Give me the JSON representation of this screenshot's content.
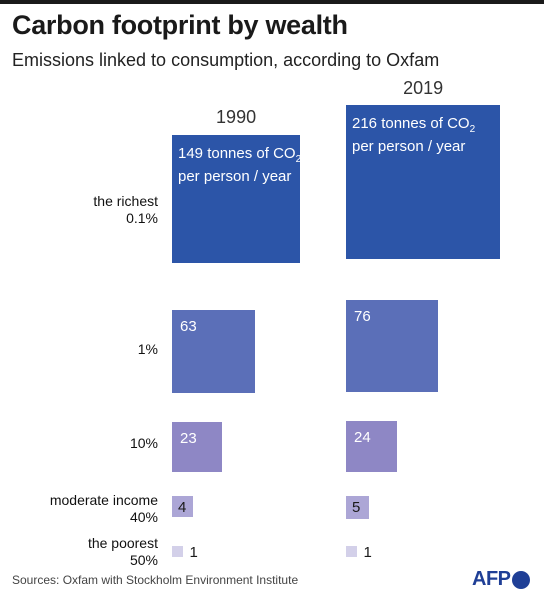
{
  "title": "Carbon footprint by wealth",
  "subtitle": "Emissions linked to consumption, according to Oxfam",
  "source": "Sources: Oxfam with Stockholm Environment Institute",
  "logo": "AFP",
  "colors": {
    "richest": "#2c55a8",
    "top1": "#5b6fb8",
    "top10": "#8e87c5",
    "middle": "#aca6d6",
    "poorest": "#d3d0e9"
  },
  "value_unit_line1": "tonnes of CO",
  "value_unit_sub": "2",
  "value_unit_line2": "per person / year",
  "chart_data": {
    "type": "bar",
    "title": "Carbon footprint by wealth",
    "subtitle": "Emissions linked to consumption, according to Oxfam",
    "unit": "tonnes of CO2 per person / year",
    "categories": [
      {
        "line1": "the richest",
        "line2": "0.1%"
      },
      {
        "line1": "",
        "line2": "1%"
      },
      {
        "line1": "",
        "line2": "10%"
      },
      {
        "line1": "moderate income",
        "line2": "40%"
      },
      {
        "line1": "the poorest",
        "line2": "50%"
      }
    ],
    "series": [
      {
        "name": "1990",
        "values": [
          149,
          63,
          23,
          4,
          1
        ]
      },
      {
        "name": "2019",
        "values": [
          216,
          76,
          24,
          5,
          1
        ]
      }
    ]
  }
}
